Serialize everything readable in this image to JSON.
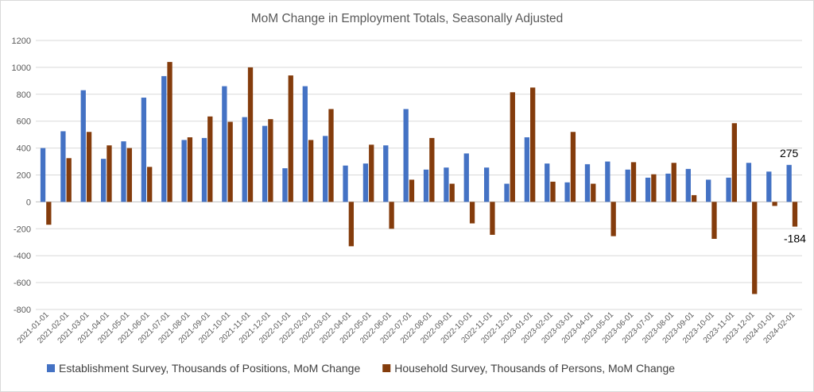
{
  "chart_data": {
    "type": "bar",
    "title": "MoM Change in Employment Totals, Seasonally Adjusted",
    "xlabel": "",
    "ylabel": "",
    "ylim": [
      -800,
      1200
    ],
    "yticks": [
      -800,
      -600,
      -400,
      -200,
      0,
      200,
      400,
      600,
      800,
      1000,
      1200
    ],
    "grid": true,
    "legend_position": "bottom",
    "categories": [
      "2021-01-01",
      "2021-02-01",
      "2021-03-01",
      "2021-04-01",
      "2021-05-01",
      "2021-06-01",
      "2021-07-01",
      "2021-08-01",
      "2021-09-01",
      "2021-10-01",
      "2021-11-01",
      "2021-12-01",
      "2022-01-01",
      "2022-02-01",
      "2022-03-01",
      "2022-04-01",
      "2022-05-01",
      "2022-06-01",
      "2022-07-01",
      "2022-08-01",
      "2022-09-01",
      "2022-10-01",
      "2022-11-01",
      "2022-12-01",
      "2023-01-01",
      "2023-02-01",
      "2023-03-01",
      "2023-04-01",
      "2023-05-01",
      "2023-06-01",
      "2023-07-01",
      "2023-08-01",
      "2023-09-01",
      "2023-10-01",
      "2023-11-01",
      "2023-12-01",
      "2024-01-01",
      "2024-02-01"
    ],
    "series": [
      {
        "name": "Establishment Survey, Thousands of Positions, MoM Change",
        "color": "#4472c4",
        "values": [
          400,
          525,
          830,
          320,
          450,
          775,
          935,
          460,
          475,
          860,
          630,
          565,
          250,
          860,
          490,
          270,
          285,
          420,
          690,
          240,
          255,
          360,
          255,
          135,
          480,
          285,
          145,
          280,
          300,
          240,
          180,
          210,
          245,
          165,
          180,
          290,
          225,
          275
        ]
      },
      {
        "name": "Household Survey, Thousands of Persons, MoM Change",
        "color": "#843c0c",
        "values": [
          -170,
          325,
          520,
          420,
          400,
          260,
          1040,
          480,
          635,
          595,
          1000,
          615,
          940,
          460,
          690,
          -330,
          425,
          -200,
          165,
          475,
          135,
          -160,
          -245,
          815,
          850,
          150,
          520,
          135,
          -255,
          295,
          205,
          290,
          50,
          -275,
          585,
          -685,
          -30,
          -184
        ]
      }
    ],
    "annotations": [
      "275",
      "-184"
    ]
  }
}
